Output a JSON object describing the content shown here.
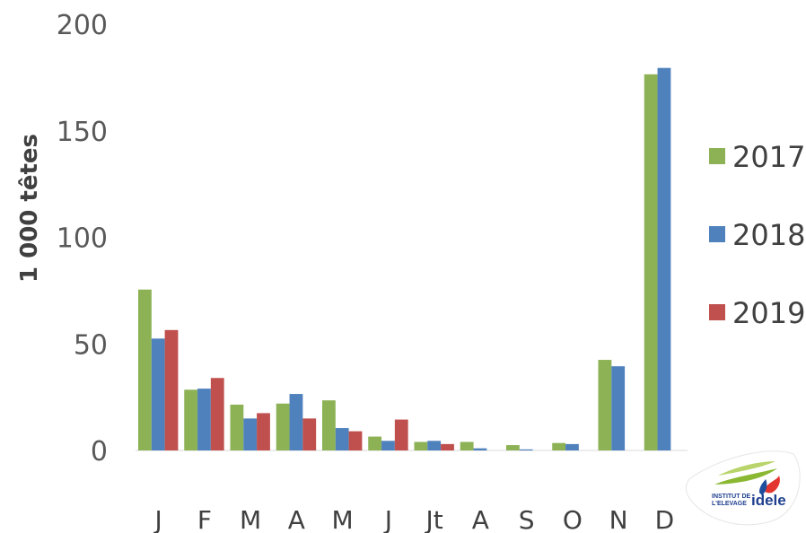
{
  "chart_data": {
    "type": "bar",
    "ylabel": "1 000 têtes",
    "ylim": [
      0,
      200
    ],
    "yticks": [
      "0",
      "50",
      "100",
      "150",
      "200"
    ],
    "ytick_values": [
      0,
      50,
      100,
      150,
      200
    ],
    "grid": false,
    "legend_position": "right",
    "categories": [
      "J",
      "F",
      "M",
      "A",
      "M",
      "J",
      "Jt",
      "A",
      "S",
      "O",
      "N",
      "D"
    ],
    "series": [
      {
        "name": "2017",
        "color": "#8db255",
        "values": [
          75.5,
          28.5,
          21.5,
          22,
          23.5,
          6.5,
          4,
          4,
          2.5,
          3.5,
          42.5,
          176.5
        ]
      },
      {
        "name": "2018",
        "color": "#4f81bd",
        "values": [
          52.5,
          29,
          15,
          26.5,
          10.5,
          4.5,
          4.5,
          1,
          0.5,
          3,
          39.5,
          179.5
        ]
      },
      {
        "name": "2019",
        "color": "#c0504d",
        "values": [
          56.5,
          34,
          17.5,
          15,
          9,
          14.5,
          3,
          0,
          0,
          0,
          0,
          0
        ]
      }
    ]
  },
  "logo": {
    "line1": "INSTITUT DE",
    "line2": "L'ELEVAGE",
    "brand": "idele"
  }
}
